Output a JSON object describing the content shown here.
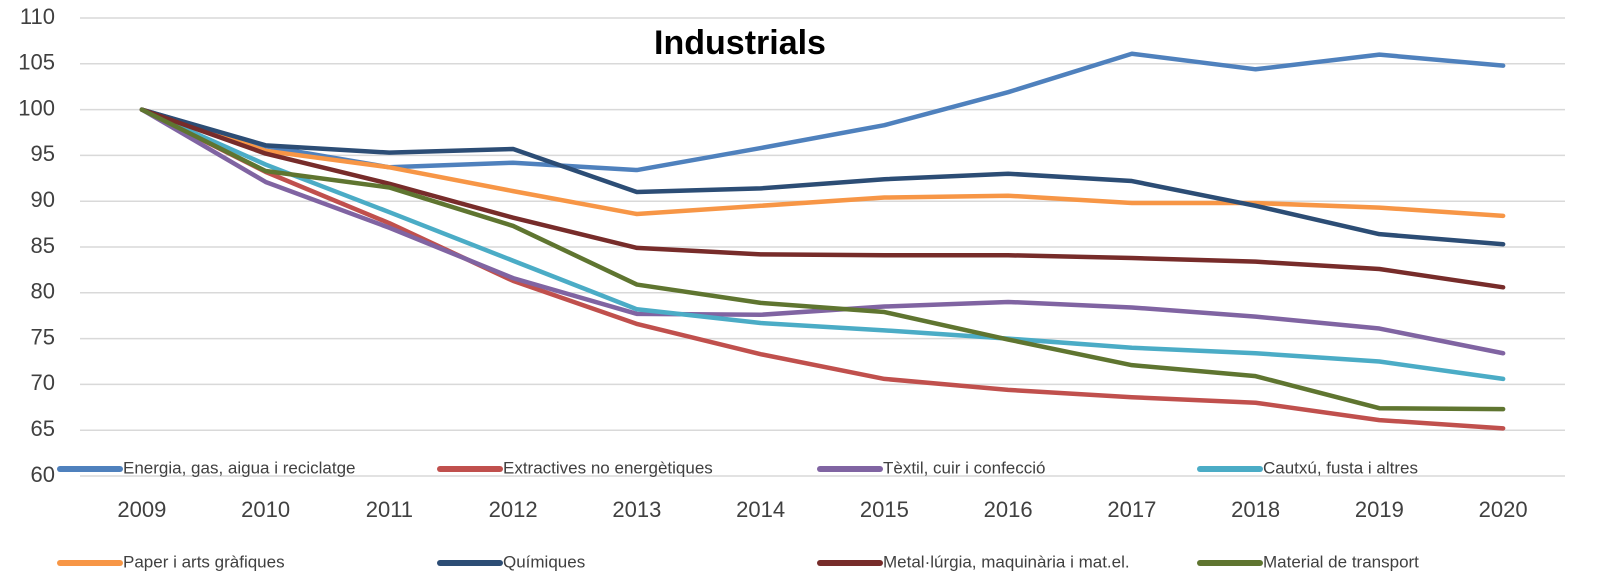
{
  "chart_data": {
    "type": "line",
    "title": "Industrials",
    "categories": [
      "2009",
      "2010",
      "2011",
      "2012",
      "2013",
      "2014",
      "2015",
      "2016",
      "2017",
      "2018",
      "2019",
      "2020"
    ],
    "series": [
      {
        "name": "Energia, gas, aigua i reciclatge",
        "color": "#4f81bd",
        "values": [
          100,
          96.0,
          93.7,
          94.2,
          93.4,
          95.8,
          98.3,
          101.9,
          106.1,
          104.4,
          106.0,
          104.8
        ]
      },
      {
        "name": "Extractives no energètiques",
        "color": "#c0504d",
        "values": [
          100,
          93.2,
          87.6,
          81.3,
          76.6,
          73.3,
          70.6,
          69.4,
          68.6,
          68.0,
          66.1,
          65.2
        ]
      },
      {
        "name": "Tèxtil, cuir i confecció",
        "color": "#8064a2",
        "values": [
          100,
          92.1,
          87.1,
          81.6,
          77.7,
          77.6,
          78.5,
          79.0,
          78.4,
          77.4,
          76.1,
          73.4
        ]
      },
      {
        "name": "Cautxú, fusta i altres",
        "color": "#4bacc6",
        "values": [
          100,
          94.0,
          88.8,
          83.5,
          78.2,
          76.7,
          75.9,
          75.0,
          74.0,
          73.4,
          72.5,
          70.6
        ]
      },
      {
        "name": "Paper i arts gràfiques",
        "color": "#f79646",
        "values": [
          100,
          95.5,
          93.7,
          91.1,
          88.6,
          89.5,
          90.4,
          90.6,
          89.8,
          89.8,
          89.3,
          88.4
        ]
      },
      {
        "name": "Químiques",
        "color": "#2c4d75",
        "values": [
          100,
          96.1,
          95.3,
          95.7,
          91.0,
          91.4,
          92.4,
          93.0,
          92.2,
          89.5,
          86.4,
          85.3
        ]
      },
      {
        "name": "Metal·lúrgia, maquinària i mat.el.",
        "color": "#772c2a",
        "values": [
          100,
          95.2,
          91.9,
          88.2,
          84.9,
          84.2,
          84.1,
          84.1,
          83.8,
          83.4,
          82.6,
          80.6
        ]
      },
      {
        "name": "Material de transport",
        "color": "#5f7530",
        "values": [
          100,
          93.3,
          91.5,
          87.3,
          80.9,
          78.9,
          77.9,
          74.9,
          72.1,
          70.9,
          67.4,
          67.3
        ]
      }
    ],
    "ylim": [
      60,
      110
    ],
    "yticks": [
      60,
      65,
      70,
      75,
      80,
      85,
      90,
      95,
      100,
      105,
      110
    ],
    "grid": true,
    "legend": "bottom"
  }
}
